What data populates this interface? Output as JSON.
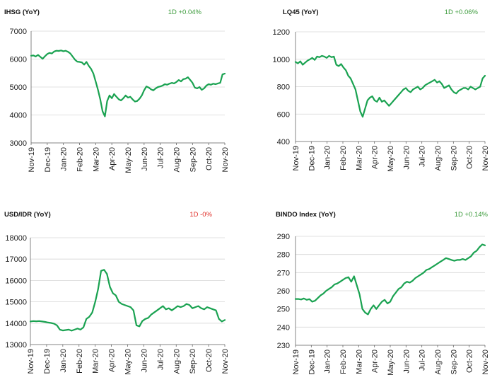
{
  "chart_data": [
    {
      "type": "line",
      "title": "IHSG (YoY)",
      "change": "1D +0.04%",
      "change_color": "#3a9a3a",
      "line_color": "#1aa251",
      "grid": true,
      "ylim": [
        3000,
        7000
      ],
      "yticks": [
        3000,
        4000,
        5000,
        6000,
        7000
      ],
      "xlabels": [
        "Nov-19",
        "Dec-19",
        "Jan-20",
        "Feb-20",
        "Mar-20",
        "Apr-20",
        "May-20",
        "Jun-20",
        "Jul-20",
        "Aug-20",
        "Sep-20",
        "Oct-20",
        "Nov-20"
      ],
      "series": [
        {
          "values": [
            6120,
            6130,
            6090,
            6150,
            6080,
            6010,
            6100,
            6180,
            6220,
            6200,
            6270,
            6300,
            6290,
            6310,
            6280,
            6300,
            6260,
            6200,
            6090,
            5980,
            5910,
            5900,
            5880,
            5800,
            5900,
            5760,
            5650,
            5480,
            5200,
            4900,
            4550,
            4130,
            3950,
            4500,
            4700,
            4600,
            4750,
            4650,
            4560,
            4520,
            4600,
            4700,
            4620,
            4650,
            4560,
            4480,
            4500,
            4580,
            4700,
            4880,
            5020,
            4980,
            4920,
            4880,
            4950,
            5000,
            5020,
            5050,
            5100,
            5080,
            5120,
            5150,
            5130,
            5180,
            5250,
            5200,
            5280,
            5300,
            5350,
            5250,
            5150,
            4980,
            4950,
            5000,
            4900,
            4950,
            5050,
            5100,
            5080,
            5120,
            5100,
            5130,
            5150,
            5450,
            5480
          ]
        }
      ]
    },
    {
      "type": "line",
      "title": "LQ45 (YoY)",
      "change": "1D +0.06%",
      "change_color": "#3a9a3a",
      "line_color": "#1aa251",
      "grid": true,
      "ylim": [
        400,
        1200
      ],
      "yticks": [
        400,
        600,
        800,
        1000,
        1200
      ],
      "xlabels": [
        "Nov-19",
        "Dec-19",
        "Jan-20",
        "Feb-20",
        "Mar-20",
        "Apr-20",
        "May-20",
        "Jun-20",
        "Jul-20",
        "Aug-20",
        "Sep-20",
        "Oct-20",
        "Nov-20"
      ],
      "series": [
        {
          "values": [
            980,
            970,
            985,
            960,
            975,
            990,
            1000,
            1010,
            995,
            1020,
            1015,
            1025,
            1020,
            1010,
            1025,
            1015,
            1020,
            960,
            950,
            965,
            940,
            920,
            880,
            860,
            820,
            780,
            700,
            620,
            580,
            640,
            700,
            720,
            730,
            700,
            690,
            720,
            690,
            700,
            680,
            660,
            680,
            700,
            720,
            740,
            760,
            780,
            790,
            770,
            760,
            780,
            790,
            800,
            780,
            790,
            810,
            820,
            830,
            840,
            850,
            830,
            840,
            820,
            790,
            800,
            810,
            780,
            760,
            750,
            770,
            780,
            790,
            790,
            780,
            800,
            790,
            780,
            790,
            800,
            860,
            880
          ]
        }
      ]
    },
    {
      "type": "line",
      "title": "USD/IDR  (YoY)",
      "change": "1D -0%",
      "change_color": "#e0302a",
      "line_color": "#1aa251",
      "grid": true,
      "ylim": [
        13000,
        18000
      ],
      "yticks": [
        13000,
        14000,
        15000,
        16000,
        17000,
        18000
      ],
      "xlabels": [
        "Nov-19",
        "Dec-19",
        "Jan-20",
        "Feb-20",
        "Mar-20",
        "Apr-20",
        "May-20",
        "Jun-20",
        "Jul-20",
        "Aug-20",
        "Sep-20",
        "Oct-20",
        "Nov-20"
      ],
      "series": [
        {
          "values": [
            14080,
            14100,
            14090,
            14100,
            14080,
            14060,
            14030,
            14010,
            13980,
            13900,
            13700,
            13660,
            13680,
            13700,
            13650,
            13700,
            13750,
            13700,
            13800,
            14200,
            14300,
            14500,
            15000,
            15600,
            16450,
            16500,
            16300,
            15700,
            15400,
            15300,
            15000,
            14900,
            14850,
            14800,
            14750,
            14600,
            13900,
            13850,
            14100,
            14200,
            14250,
            14400,
            14500,
            14600,
            14700,
            14800,
            14650,
            14700,
            14600,
            14700,
            14800,
            14750,
            14800,
            14900,
            14850,
            14700,
            14750,
            14800,
            14700,
            14650,
            14750,
            14700,
            14650,
            14600,
            14200,
            14080,
            14150
          ]
        }
      ]
    },
    {
      "type": "line",
      "title": "BINDO Index (YoY)",
      "change": "1D +0.14%",
      "change_color": "#3a9a3a",
      "line_color": "#1aa251",
      "grid": true,
      "ylim": [
        230,
        290
      ],
      "yticks": [
        230,
        240,
        250,
        260,
        270,
        280,
        290
      ],
      "xlabels": [
        "Nov-19",
        "Dec-19",
        "Jan-20",
        "Feb-20",
        "Mar-20",
        "Apr-20",
        "May-20",
        "Jun-20",
        "Jul-20",
        "Aug-20",
        "Sep-20",
        "Oct-20",
        "Nov-20"
      ],
      "series": [
        {
          "values": [
            255.5,
            255.5,
            255.2,
            255.8,
            255.0,
            255.4,
            254.0,
            254.5,
            256.0,
            257.5,
            258.5,
            260.0,
            261.0,
            262.0,
            263.5,
            264.0,
            265.0,
            266.0,
            267.0,
            267.5,
            265.0,
            268.0,
            263.0,
            258.0,
            250.0,
            248.0,
            247.0,
            250.0,
            252.0,
            250.0,
            252.0,
            254.0,
            255.0,
            253.0,
            254.0,
            257.0,
            259.0,
            261.0,
            262.0,
            264.0,
            265.0,
            264.5,
            265.5,
            267.0,
            268.0,
            269.0,
            270.0,
            271.5,
            272.0,
            273.0,
            274.0,
            275.0,
            276.0,
            277.0,
            278.0,
            277.5,
            277.0,
            276.5,
            277.0,
            277.0,
            277.5,
            277.0,
            278.0,
            279.0,
            281.0,
            282.0,
            284.0,
            285.5,
            285.0
          ]
        }
      ]
    }
  ]
}
